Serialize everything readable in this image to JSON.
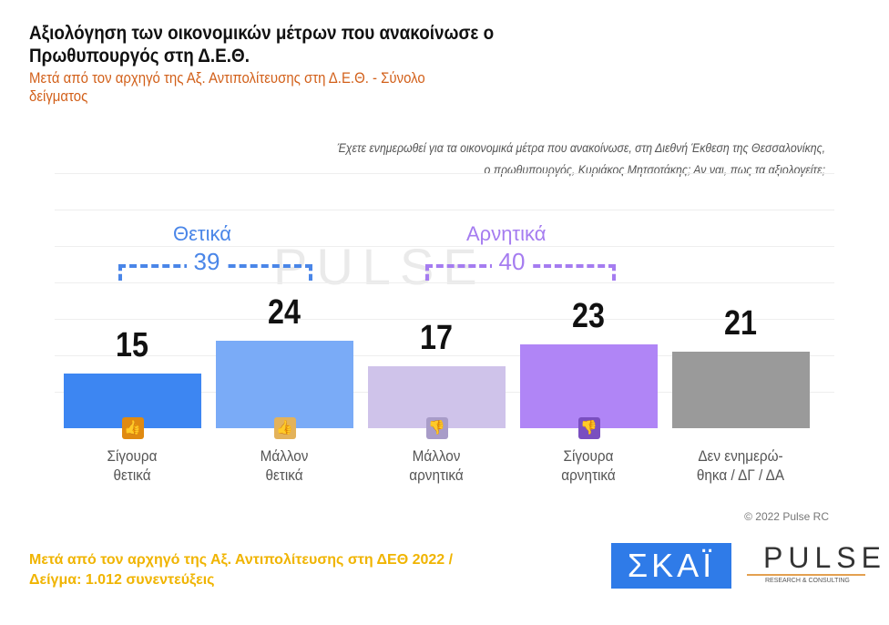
{
  "header": {
    "title": "Αξιολόγηση των οικονομικών μέτρων που ανακοίνωσε ο Πρωθυπουργός στη Δ.Ε.Θ.",
    "subtitle": "Μετά από τον αρχηγό της Αξ. Αντιπολίτευσης στη Δ.Ε.Θ. - Σύνολο δείγματος",
    "question_line1": "Έχετε ενημερωθεί για τα οικονομικά μέτρα που ανακοίνωσε, στη Διεθνή Έκθεση της Θεσσαλονίκης,",
    "question_line2": "ο πρωθυπουργός, Κυριάκος Μητσοτάκης; Αν ναι, πως τα αξιολογείτε;"
  },
  "chart_data": {
    "type": "bar",
    "categories": [
      "Σίγουρα θετικά",
      "Μάλλον θετικά",
      "Μάλλον αρνητικά",
      "Σίγουρα αρνητικά",
      "Δεν ενημερώ-θηκα / ΔΓ / ΔΑ"
    ],
    "category_lines": [
      [
        "Σίγουρα",
        "θετικά"
      ],
      [
        "Μάλλον",
        "θετικά"
      ],
      [
        "Μάλλον",
        "αρνητικά"
      ],
      [
        "Σίγουρα",
        "αρνητικά"
      ],
      [
        "Δεν ενημερώ-",
        "θηκα / ΔΓ / ΔΑ"
      ]
    ],
    "values": [
      15,
      24,
      17,
      23,
      21
    ],
    "colors": [
      "#3d86f2",
      "#7aabf7",
      "#cfc3ea",
      "#b085f6",
      "#9a9a9a"
    ],
    "icons": [
      "two-thumbs-up-icon",
      "thumb-up-icon",
      "thumb-down-icon",
      "two-thumbs-down-icon",
      null
    ],
    "icon_colors": [
      "#e08a10",
      "#e3b25a",
      "#a89cc8",
      "#7a4fc0",
      null
    ],
    "groups": [
      {
        "label": "Θετικά",
        "total": "39",
        "color": "#4a86e8"
      },
      {
        "label": "Αρνητικά",
        "total": "40",
        "color": "#a57cf0"
      }
    ],
    "ylim": [
      0,
      40
    ],
    "grid": true
  },
  "watermark": "PULSE",
  "copyright": "© 2022 Pulse RC",
  "footer": {
    "line1": "Μετά από τον αρχηγό της Αξ. Αντιπολίτευσης στη ΔΕΘ  2022  /",
    "line2": "Δείγμα:  1.012 συνεντεύξεις"
  },
  "logos": {
    "skai": "ΣΚΑΪ",
    "pulse": "PULSE",
    "pulse_sub": "RESEARCH & CONSULTING"
  }
}
